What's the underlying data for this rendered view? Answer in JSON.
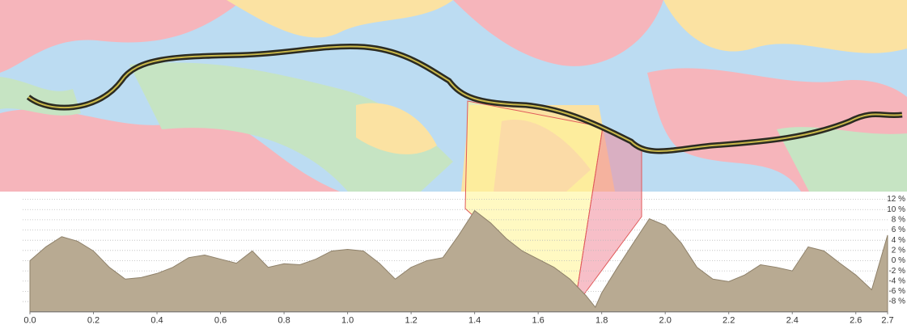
{
  "chart_data": {
    "type": "area",
    "x": [
      0.0,
      0.05,
      0.1,
      0.15,
      0.2,
      0.25,
      0.3,
      0.35,
      0.4,
      0.45,
      0.5,
      0.55,
      0.6,
      0.65,
      0.7,
      0.75,
      0.8,
      0.85,
      0.9,
      0.95,
      1.0,
      1.05,
      1.1,
      1.15,
      1.2,
      1.25,
      1.3,
      1.35,
      1.4,
      1.45,
      1.5,
      1.55,
      1.6,
      1.65,
      1.7,
      1.75,
      1.78,
      1.8,
      1.85,
      1.9,
      1.95,
      2.0,
      2.05,
      2.1,
      2.15,
      2.2,
      2.25,
      2.3,
      2.35,
      2.4,
      2.45,
      2.5,
      2.55,
      2.6,
      2.65,
      2.7
    ],
    "series": [
      {
        "color": "#b8aa92",
        "values": [
          0,
          2.7,
          4.7,
          3.8,
          1.9,
          -1.3,
          -3.6,
          -3.3,
          -2.5,
          -1.3,
          0.6,
          1.1,
          0.3,
          -0.5,
          1.9,
          -1.3,
          -0.6,
          -0.8,
          0.3,
          1.9,
          2.2,
          1.9,
          -0.5,
          -3.6,
          -1.3,
          0,
          0.6,
          5,
          9.8,
          7.4,
          4.3,
          1.9,
          0.3,
          -1.3,
          -3.6,
          -6.8,
          -9.1,
          -6.3,
          -1.3,
          3.5,
          8.2,
          6.9,
          3.5,
          -1.3,
          -3.6,
          -4.1,
          -2.8,
          -0.8,
          -1.3,
          -2,
          2.7,
          1.9,
          -0.5,
          -2.8,
          -5.7,
          5
        ]
      }
    ],
    "xlim": [
      0,
      2.7
    ],
    "xticks": [
      {
        "value": 0,
        "label": "0.0"
      },
      0.2,
      0.4,
      0.6,
      0.8,
      {
        "value": 1,
        "label": "1.0"
      },
      1.2,
      1.4,
      1.6,
      1.8,
      {
        "value": 2,
        "label": "2.0"
      },
      2.2,
      2.4,
      2.6,
      2.7
    ],
    "ylim": [
      -10,
      12
    ],
    "yticks": [
      {
        "value": 12,
        "label": "12 %"
      },
      {
        "value": 10,
        "label": "10 %"
      },
      {
        "value": 8,
        "label": "8 %"
      },
      {
        "value": 6,
        "label": "6 %"
      },
      {
        "value": 4,
        "label": "4 %"
      },
      {
        "value": 2,
        "label": "2 %"
      },
      {
        "value": 0,
        "label": "0 %"
      },
      {
        "value": -2,
        "label": "-2 %"
      },
      {
        "value": -4,
        "label": "-4 %"
      },
      {
        "value": -6,
        "label": "-6 %"
      },
      {
        "value": -8,
        "label": "-8 %"
      }
    ],
    "grid": true
  }
}
